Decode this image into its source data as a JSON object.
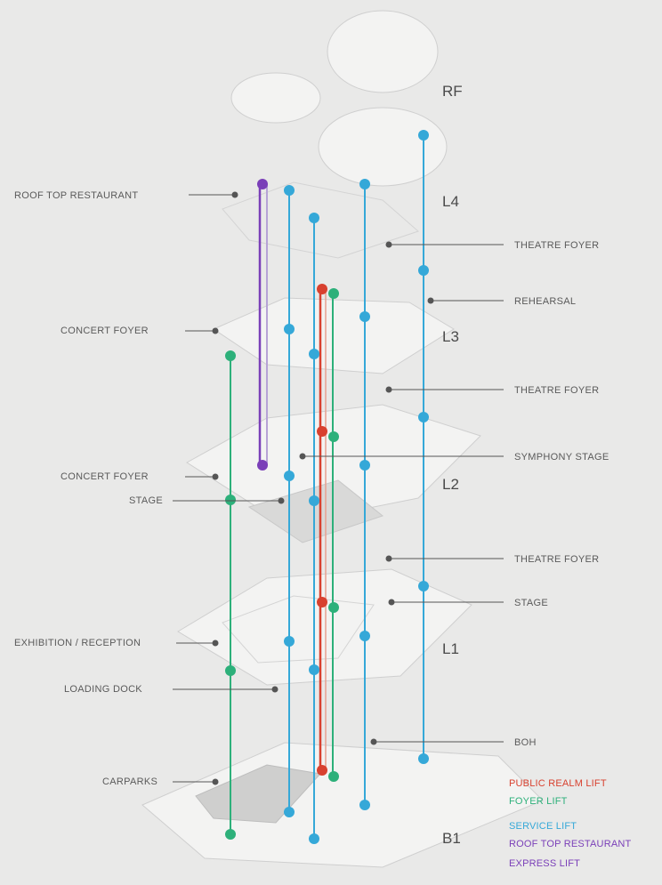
{
  "levels": {
    "rf": "RF",
    "l4": "L4",
    "l3": "L3",
    "l2": "L2",
    "l1": "L1",
    "b1": "B1"
  },
  "labels_left": {
    "rooftop_restaurant": "ROOF TOP RESTAURANT",
    "concert_foyer_l3": "CONCERT FOYER",
    "concert_foyer_l2": "CONCERT FOYER",
    "stage_l2": "STAGE",
    "exhibition_reception": "EXHIBITION / RECEPTION",
    "loading_dock": "LOADING DOCK",
    "carpark": "CARPARKS"
  },
  "labels_right": {
    "theatre_foyer_l4": "THEATRE FOYER",
    "rehearsal": "REHEARSAL",
    "theatre_foyer_l3": "THEATRE FOYER",
    "symphony_stage": "SYMPHONY STAGE",
    "theatre_foyer_l1": "THEATRE FOYER",
    "stage_l1": "STAGE",
    "boh": "BOH"
  },
  "legend": [
    {
      "label": "PUBLIC REALM LIFT",
      "color": "#d8412f"
    },
    {
      "label": "FOYER LIFT",
      "color": "#2db07a"
    },
    {
      "label": "SERVICE LIFT",
      "color": "#35a8d8"
    },
    {
      "label": "ROOF TOP RESTAURANT",
      "color": "#7a3fb8"
    },
    {
      "label": "EXPRESS LIFT",
      "color": "#7a3fb8"
    }
  ],
  "colors": {
    "public_realm": "#d8412f",
    "foyer": "#2db07a",
    "service": "#35a8d8",
    "rooftop": "#7a3fb8",
    "leader_dot": "#555555"
  }
}
